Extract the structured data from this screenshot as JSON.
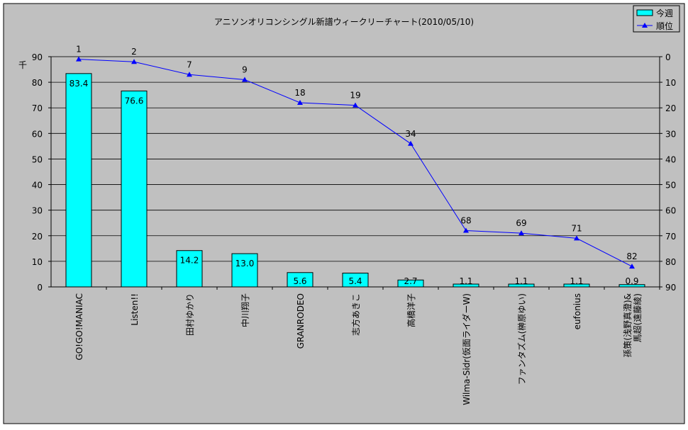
{
  "chart_data": {
    "type": "bar+line",
    "title": "アニソンオリコンシングル新譜ウィークリーチャート(2010/05/10)",
    "ylabel_left": "千",
    "categories": [
      "GO!GO!MANIAC",
      "Listen!!",
      "田村ゆかり",
      "中川翔子",
      "GRANRODEO",
      "志方あきこ",
      "高橋洋子",
      "Wilma-Sidr(仮面ライダーW)",
      "ファンタズム(榊原ゆい)",
      "eufonius",
      "孫策(浅野真澄)&馬超(遠藤綾)"
    ],
    "series": [
      {
        "name": "今週",
        "type": "bar",
        "axis": "left",
        "color": "#00ffff",
        "values": [
          83.4,
          76.6,
          14.2,
          13.0,
          5.6,
          5.4,
          2.7,
          1.1,
          1.1,
          1.1,
          0.9
        ],
        "labels": [
          "83.4",
          "76.6",
          "14.2",
          "13.0",
          "5.6",
          "5.4",
          "2.7",
          "1.1",
          "1.1",
          "1.1",
          "0.9"
        ]
      },
      {
        "name": "順位",
        "type": "line",
        "axis": "right",
        "color": "#0000ff",
        "marker": "triangle",
        "values": [
          1,
          2,
          7,
          9,
          18,
          19,
          34,
          68,
          69,
          71,
          82
        ]
      }
    ],
    "left_axis": {
      "min": 0,
      "max": 90,
      "step": 10,
      "ticks": [
        "0",
        "10",
        "20",
        "30",
        "40",
        "50",
        "60",
        "70",
        "80",
        "90"
      ]
    },
    "right_axis": {
      "min": 0,
      "max": 90,
      "step": 10,
      "reversed": true,
      "ticks": [
        "0",
        "10",
        "20",
        "30",
        "40",
        "50",
        "60",
        "70",
        "80",
        "90"
      ]
    },
    "grid": true,
    "legend": "top-right"
  }
}
